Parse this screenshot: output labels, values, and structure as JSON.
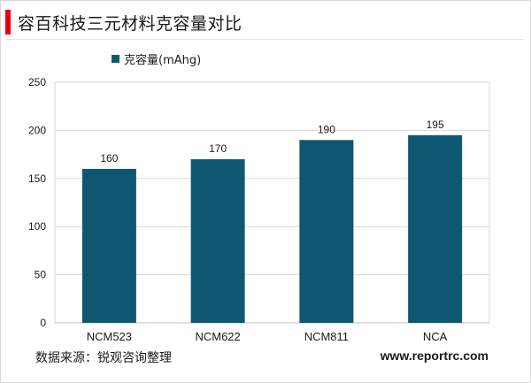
{
  "header": {
    "title": "容百科技三元材料克容量对比"
  },
  "colors": {
    "bar": "#0e5770",
    "accent": "#e60012"
  },
  "chart_data": {
    "type": "bar",
    "categories": [
      "NCM523",
      "NCM622",
      "NCM811",
      "NCA"
    ],
    "series": [
      {
        "name": "克容量(mAhg)",
        "values": [
          160,
          170,
          190,
          195
        ]
      }
    ],
    "yticks": [
      "0",
      "50",
      "100",
      "150",
      "200",
      "250"
    ],
    "ylim": [
      0,
      250
    ],
    "legend_position": "top-left",
    "grid": true
  },
  "footer": {
    "source": "数据来源：锐观咨询整理",
    "url": "www.reportrc.com"
  }
}
